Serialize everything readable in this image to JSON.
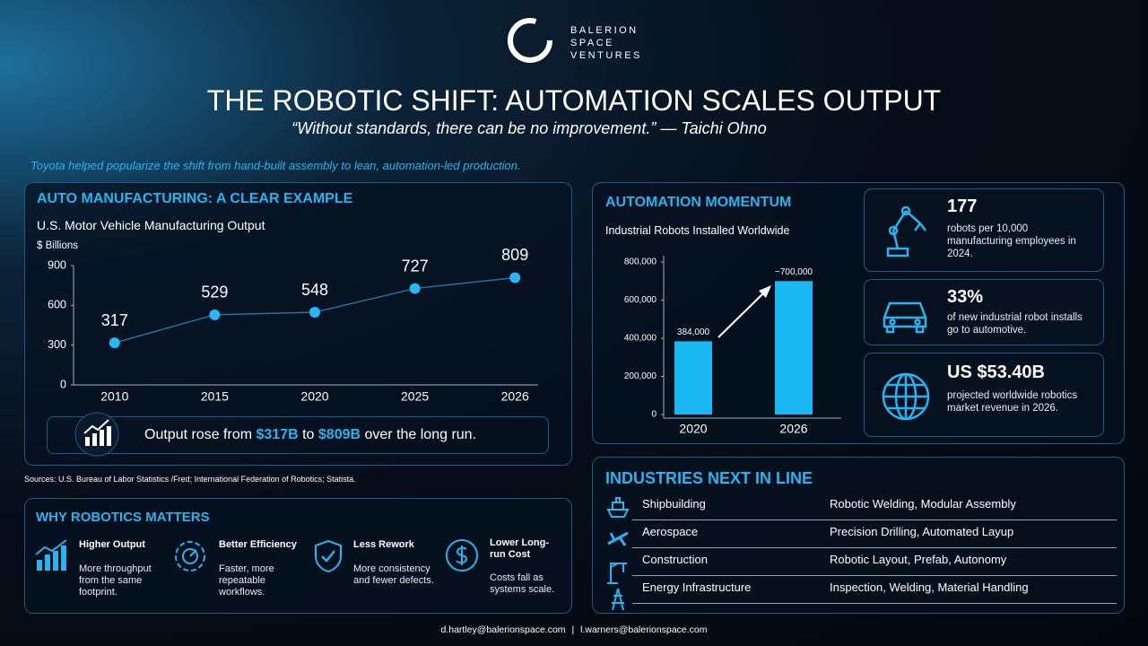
{
  "header": {
    "brand": [
      "BALERION",
      "SPACE",
      "VENTURES"
    ],
    "title": "THE ROBOTIC SHIFT: AUTOMATION SCALES OUTPUT",
    "quote": "“Without standards, there can be no improvement.” — Taichi Ohno",
    "intro": "Toyota helped popularize the shift from hand-built assembly to lean, automation-led production."
  },
  "auto_panel": {
    "heading": "AUTO MANUFACTURING: A CLEAR EXAMPLE",
    "callout": [
      "Output rose from ",
      "$317B",
      " to ",
      "$809B",
      " over the long run."
    ]
  },
  "automation_panel": {
    "heading": "AUTOMATION MOMENTUM"
  },
  "chart_data": [
    {
      "type": "line",
      "title": "U.S. Motor Vehicle Manufacturing Output",
      "y_label": "$ Billions",
      "categories": [
        "2010",
        "2015",
        "2020",
        "2025",
        "2026"
      ],
      "values": [
        317,
        529,
        548,
        727,
        809
      ],
      "color": "#29b6f6",
      "ylim": [
        0,
        900
      ],
      "yticks": [
        0,
        300,
        600,
        900
      ]
    },
    {
      "type": "bar",
      "title": "Industrial Robots Installed Worldwide",
      "categories": [
        "2020",
        "2026"
      ],
      "values": [
        384000,
        700000
      ],
      "value_labels": [
        "384,000",
        "~700,000"
      ],
      "color": "#1ab8f3",
      "ylim": [
        0,
        800000
      ],
      "yticks": [
        0,
        {
          "value": 200000,
          "label": "200,000"
        },
        {
          "value": 400000,
          "label": "400,000"
        },
        {
          "value": 600000,
          "label": "600,000"
        },
        {
          "value": 800000,
          "label": "800,000"
        }
      ]
    }
  ],
  "stats": [
    {
      "value": "177",
      "text": "robots per 10,000 manufacturing employees in 2024."
    },
    {
      "value": "33%",
      "text": "of new industrial robot installs go to automotive."
    },
    {
      "value": "US $53.40B",
      "text": "projected worldwide robotics market revenue in 2026."
    }
  ],
  "sources": "Sources: U.S. Bureau of Labor Statistics /Fred; International Federation of Robotics; Statista.",
  "why": {
    "heading": "WHY ROBOTICS MATTERS",
    "items": [
      {
        "title": "Higher Output",
        "text": "More throughput from the same footprint."
      },
      {
        "title": "Better Efficiency",
        "text": "Faster, more repeatable workflows."
      },
      {
        "title": "Less Rework",
        "text": "More consistency and fewer defects."
      },
      {
        "title": "Lower Long-run Cost",
        "text": "Costs fall as systems scale."
      }
    ]
  },
  "industries": {
    "heading": "INDUSTRIES NEXT IN LINE",
    "rows": [
      [
        "Shipbuilding",
        "Robotic Welding, Modular Assembly"
      ],
      [
        "Aerospace",
        "Precision Drilling, Automated Layup"
      ],
      [
        "Construction",
        "Robotic Layout, Prefab, Autonomy"
      ],
      [
        "Energy Infrastructure",
        "Inspection, Welding, Material Handling"
      ]
    ]
  },
  "footer": {
    "emails": [
      "d.hartley@balerionspace.com",
      "l.warners@balerionspace.com"
    ],
    "separator": "|"
  }
}
